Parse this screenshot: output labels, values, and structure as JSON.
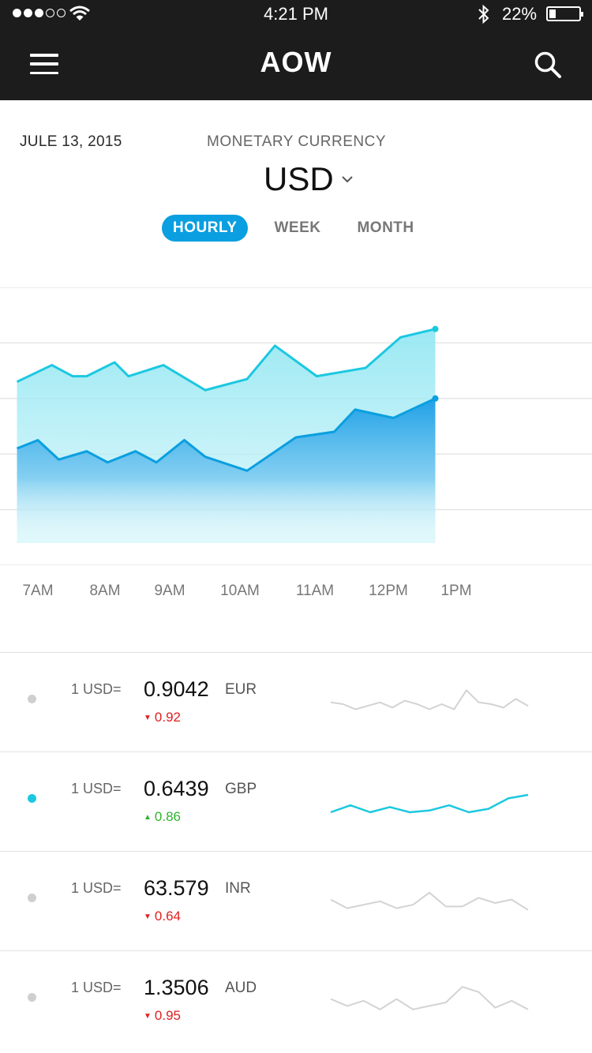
{
  "status_bar": {
    "time": "4:21 PM",
    "battery": "22%",
    "battery_level": 0.22
  },
  "nav": {
    "title": "AOW",
    "menu_icon": "hamburger-menu-icon",
    "search_icon": "search-icon"
  },
  "header": {
    "date": "JULE 13, 2015",
    "currency_caption": "MONETARY CURRENCY",
    "currency": "USD"
  },
  "tabs": [
    {
      "label": "HOURLY",
      "active": true
    },
    {
      "label": "WEEK",
      "active": false
    },
    {
      "label": "MONTH",
      "active": false
    }
  ],
  "chart_data": {
    "type": "area",
    "x": [
      "7AM",
      "8AM",
      "9AM",
      "10AM",
      "11AM",
      "12PM",
      "1PM"
    ],
    "ylim": [
      0,
      5
    ],
    "grid": true,
    "series": [
      {
        "color": "#1cc8e0",
        "fill": "#b5eef5",
        "points": [
          [
            6.7,
            3.3
          ],
          [
            7.2,
            3.6
          ],
          [
            7.5,
            3.4
          ],
          [
            7.7,
            3.4
          ],
          [
            8.1,
            3.65
          ],
          [
            8.3,
            3.4
          ],
          [
            8.8,
            3.6
          ],
          [
            9.4,
            3.15
          ],
          [
            10.0,
            3.35
          ],
          [
            10.4,
            3.95
          ],
          [
            11.0,
            3.4
          ],
          [
            11.7,
            3.55
          ],
          [
            12.2,
            4.1
          ],
          [
            12.7,
            4.25
          ]
        ]
      },
      {
        "color": "#0a9fe0",
        "fill": "#3fb2ec",
        "points": [
          [
            6.7,
            2.1
          ],
          [
            7.0,
            2.25
          ],
          [
            7.3,
            1.9
          ],
          [
            7.7,
            2.05
          ],
          [
            8.0,
            1.85
          ],
          [
            8.4,
            2.05
          ],
          [
            8.7,
            1.85
          ],
          [
            9.1,
            2.25
          ],
          [
            9.4,
            1.95
          ],
          [
            10.0,
            1.7
          ],
          [
            10.7,
            2.3
          ],
          [
            11.25,
            2.4
          ],
          [
            11.55,
            2.8
          ],
          [
            12.1,
            2.65
          ],
          [
            12.7,
            3.0
          ]
        ]
      }
    ]
  },
  "rates": [
    {
      "prefix": "1 USD=",
      "value": "0.9042",
      "code": "EUR",
      "change": "0.92",
      "direction": "down",
      "active": false,
      "spark": [
        0.55,
        0.5,
        0.35,
        0.45,
        0.55,
        0.4,
        0.6,
        0.5,
        0.35,
        0.5,
        0.35,
        0.9,
        0.55,
        0.5,
        0.4,
        0.65,
        0.45
      ]
    },
    {
      "prefix": "1 USD=",
      "value": "0.6439",
      "code": "GBP",
      "change": "0.86",
      "direction": "up",
      "active": true,
      "spark": [
        0.25,
        0.45,
        0.25,
        0.4,
        0.25,
        0.3,
        0.45,
        0.25,
        0.35,
        0.65,
        0.75
      ]
    },
    {
      "prefix": "1 USD=",
      "value": "63.579",
      "code": "INR",
      "change": "0.64",
      "direction": "down",
      "active": false,
      "spark": [
        0.6,
        0.35,
        0.45,
        0.55,
        0.35,
        0.45,
        0.8,
        0.4,
        0.4,
        0.65,
        0.5,
        0.6,
        0.3
      ]
    },
    {
      "prefix": "1 USD=",
      "value": "1.3506",
      "code": "AUD",
      "change": "0.95",
      "direction": "down",
      "active": false,
      "spark": [
        0.6,
        0.4,
        0.55,
        0.3,
        0.6,
        0.3,
        0.4,
        0.5,
        0.95,
        0.8,
        0.35,
        0.55,
        0.3
      ]
    }
  ]
}
